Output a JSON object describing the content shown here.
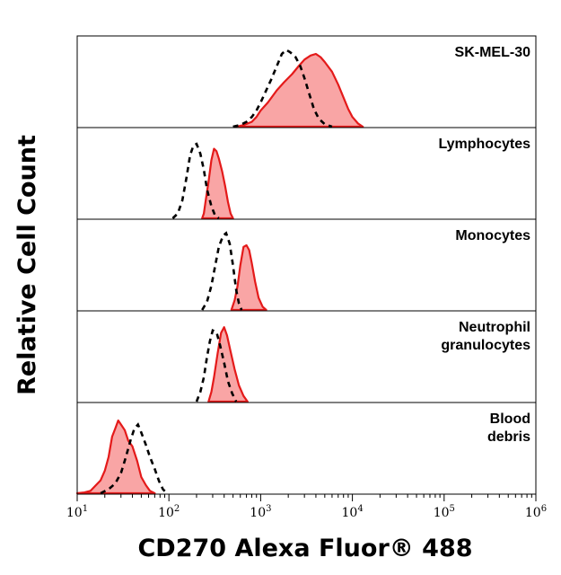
{
  "chart_data": {
    "type": "area",
    "title": "",
    "xlabel": "CD270 Alexa Fluor® 488",
    "ylabel": "Relative Cell Count",
    "x_scale": "log",
    "xlim": [
      10,
      1000000
    ],
    "x_ticks": [
      {
        "base": "10",
        "exp": "1"
      },
      {
        "base": "10",
        "exp": "2"
      },
      {
        "base": "10",
        "exp": "3"
      },
      {
        "base": "10",
        "exp": "4"
      },
      {
        "base": "10",
        "exp": "5"
      },
      {
        "base": "10",
        "exp": "6"
      }
    ],
    "colors": {
      "stained_fill": "#f9a5a5",
      "stained_line": "#e41a1a",
      "control_line": "#000000"
    },
    "panels": [
      {
        "label_lines": [
          "SK-MEL-30"
        ],
        "stained": [
          [
            550,
            0
          ],
          [
            650,
            0.02
          ],
          [
            800,
            0.06
          ],
          [
            900,
            0.12
          ],
          [
            1000,
            0.2
          ],
          [
            1200,
            0.3
          ],
          [
            1500,
            0.45
          ],
          [
            1800,
            0.55
          ],
          [
            2200,
            0.65
          ],
          [
            2600,
            0.75
          ],
          [
            3000,
            0.83
          ],
          [
            3500,
            0.88
          ],
          [
            4000,
            0.9
          ],
          [
            4500,
            0.86
          ],
          [
            5000,
            0.8
          ],
          [
            6000,
            0.68
          ],
          [
            7000,
            0.52
          ],
          [
            8000,
            0.36
          ],
          [
            9000,
            0.22
          ],
          [
            10000,
            0.12
          ],
          [
            11500,
            0.04
          ],
          [
            13000,
            0
          ]
        ],
        "control": [
          [
            500,
            0
          ],
          [
            600,
            0.02
          ],
          [
            700,
            0.06
          ],
          [
            800,
            0.12
          ],
          [
            900,
            0.2
          ],
          [
            1000,
            0.3
          ],
          [
            1150,
            0.45
          ],
          [
            1300,
            0.58
          ],
          [
            1500,
            0.75
          ],
          [
            1700,
            0.9
          ],
          [
            1900,
            0.95
          ],
          [
            2100,
            0.92
          ],
          [
            2400,
            0.86
          ],
          [
            2700,
            0.75
          ],
          [
            3000,
            0.6
          ],
          [
            3400,
            0.4
          ],
          [
            3800,
            0.22
          ],
          [
            4300,
            0.1
          ],
          [
            5000,
            0.03
          ],
          [
            6000,
            0
          ]
        ]
      },
      {
        "label_lines": [
          "Lymphocytes"
        ],
        "stained": [
          [
            230,
            0
          ],
          [
            240,
            0.06
          ],
          [
            250,
            0.2
          ],
          [
            270,
            0.45
          ],
          [
            290,
            0.72
          ],
          [
            310,
            0.86
          ],
          [
            330,
            0.83
          ],
          [
            350,
            0.74
          ],
          [
            380,
            0.58
          ],
          [
            410,
            0.4
          ],
          [
            440,
            0.2
          ],
          [
            470,
            0.06
          ],
          [
            500,
            0
          ]
        ],
        "control": [
          [
            110,
            0
          ],
          [
            125,
            0.06
          ],
          [
            140,
            0.22
          ],
          [
            155,
            0.5
          ],
          [
            170,
            0.78
          ],
          [
            185,
            0.9
          ],
          [
            200,
            0.92
          ],
          [
            220,
            0.8
          ],
          [
            240,
            0.6
          ],
          [
            260,
            0.36
          ],
          [
            290,
            0.15
          ],
          [
            320,
            0.03
          ],
          [
            350,
            0
          ]
        ]
      },
      {
        "label_lines": [
          "Monocytes"
        ],
        "stained": [
          [
            480,
            0
          ],
          [
            520,
            0.12
          ],
          [
            560,
            0.3
          ],
          [
            600,
            0.55
          ],
          [
            650,
            0.78
          ],
          [
            700,
            0.8
          ],
          [
            750,
            0.74
          ],
          [
            800,
            0.58
          ],
          [
            870,
            0.35
          ],
          [
            950,
            0.15
          ],
          [
            1050,
            0.04
          ],
          [
            1150,
            0
          ]
        ],
        "control": [
          [
            230,
            0
          ],
          [
            260,
            0.1
          ],
          [
            290,
            0.3
          ],
          [
            320,
            0.55
          ],
          [
            350,
            0.78
          ],
          [
            390,
            0.92
          ],
          [
            420,
            0.95
          ],
          [
            460,
            0.82
          ],
          [
            500,
            0.55
          ],
          [
            540,
            0.25
          ],
          [
            580,
            0.08
          ],
          [
            620,
            0
          ]
        ]
      },
      {
        "label_lines": [
          "Neutrophil",
          "granulocytes"
        ],
        "stained": [
          [
            270,
            0
          ],
          [
            290,
            0.12
          ],
          [
            310,
            0.3
          ],
          [
            340,
            0.6
          ],
          [
            370,
            0.85
          ],
          [
            400,
            0.92
          ],
          [
            430,
            0.82
          ],
          [
            470,
            0.62
          ],
          [
            520,
            0.4
          ],
          [
            580,
            0.2
          ],
          [
            650,
            0.07
          ],
          [
            720,
            0
          ]
        ],
        "control": [
          [
            200,
            0
          ],
          [
            220,
            0.12
          ],
          [
            240,
            0.3
          ],
          [
            260,
            0.55
          ],
          [
            280,
            0.75
          ],
          [
            300,
            0.88
          ],
          [
            330,
            0.86
          ],
          [
            360,
            0.7
          ],
          [
            400,
            0.48
          ],
          [
            440,
            0.25
          ],
          [
            490,
            0.1
          ],
          [
            540,
            0
          ]
        ]
      },
      {
        "label_lines": [
          "Blood",
          "debris"
        ],
        "stained": [
          [
            10,
            0
          ],
          [
            12,
            0.01
          ],
          [
            14,
            0.03
          ],
          [
            16,
            0.1
          ],
          [
            18,
            0.16
          ],
          [
            20,
            0.28
          ],
          [
            22,
            0.45
          ],
          [
            24,
            0.7
          ],
          [
            26,
            0.8
          ],
          [
            28,
            0.9
          ],
          [
            30,
            0.85
          ],
          [
            33,
            0.78
          ],
          [
            36,
            0.65
          ],
          [
            40,
            0.58
          ],
          [
            45,
            0.4
          ],
          [
            50,
            0.2
          ],
          [
            56,
            0.1
          ],
          [
            62,
            0.03
          ],
          [
            70,
            0
          ]
        ],
        "control": [
          [
            18,
            0
          ],
          [
            22,
            0.05
          ],
          [
            26,
            0.12
          ],
          [
            30,
            0.25
          ],
          [
            34,
            0.45
          ],
          [
            38,
            0.65
          ],
          [
            42,
            0.8
          ],
          [
            46,
            0.85
          ],
          [
            50,
            0.75
          ],
          [
            56,
            0.6
          ],
          [
            62,
            0.45
          ],
          [
            70,
            0.3
          ],
          [
            78,
            0.15
          ],
          [
            86,
            0.05
          ],
          [
            95,
            0
          ]
        ]
      }
    ]
  }
}
